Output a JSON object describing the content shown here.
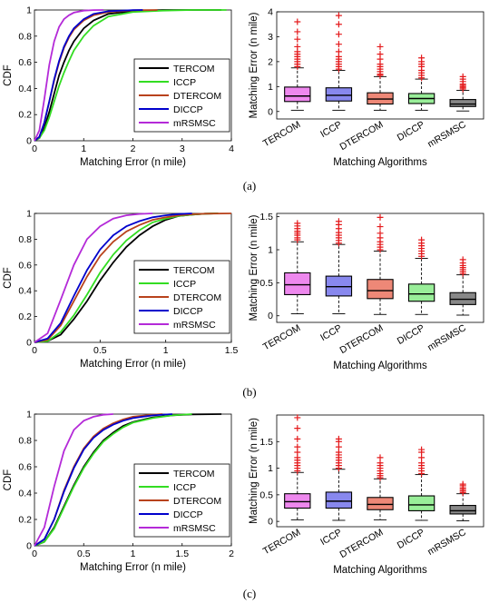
{
  "captions": [
    "(a)",
    "(b)",
    "(c)"
  ],
  "colors": {
    "TERCOM": "#000000",
    "ICCP": "#33dd22",
    "DTERCOM": "#b8421c",
    "DICCP": "#0000cc",
    "mRSMSC": "#b42ad8",
    "outlier": "#e41a1c",
    "box_fills": [
      "#ee88ee",
      "#8888ee",
      "#ee8877",
      "#99ee99",
      "#888888"
    ]
  },
  "chart_data": [
    {
      "type": "line",
      "panel": "a",
      "xlabel": "Matching Error (n mile)",
      "ylabel": "CDF",
      "xlim": [
        0,
        4
      ],
      "ylim": [
        0,
        1
      ],
      "xticks": [
        "0",
        "1",
        "2",
        "3",
        "4"
      ],
      "yticks": [
        "0",
        "0.2",
        "0.4",
        "0.6",
        "0.8",
        "1"
      ],
      "legend": "right",
      "series": [
        {
          "name": "TERCOM",
          "x": [
            0,
            0.1,
            0.2,
            0.3,
            0.4,
            0.5,
            0.6,
            0.7,
            0.8,
            1.0,
            1.2,
            1.5,
            2.0,
            2.6,
            3.2,
            3.8
          ],
          "y": [
            0,
            0.02,
            0.1,
            0.22,
            0.36,
            0.5,
            0.6,
            0.69,
            0.76,
            0.86,
            0.92,
            0.97,
            0.99,
            1,
            1,
            1
          ]
        },
        {
          "name": "ICCP",
          "x": [
            0,
            0.1,
            0.2,
            0.3,
            0.4,
            0.5,
            0.6,
            0.7,
            0.8,
            1.0,
            1.2,
            1.5,
            2.0,
            2.6,
            3.2,
            3.9
          ],
          "y": [
            0,
            0.02,
            0.08,
            0.18,
            0.3,
            0.42,
            0.52,
            0.61,
            0.69,
            0.8,
            0.88,
            0.95,
            0.985,
            0.995,
            1,
            1
          ]
        },
        {
          "name": "DTERCOM",
          "x": [
            0,
            0.1,
            0.2,
            0.3,
            0.4,
            0.5,
            0.6,
            0.7,
            0.8,
            1.0,
            1.2,
            1.5,
            2.0,
            2.5
          ],
          "y": [
            0,
            0.03,
            0.14,
            0.3,
            0.46,
            0.6,
            0.71,
            0.79,
            0.85,
            0.92,
            0.96,
            0.985,
            0.998,
            1
          ]
        },
        {
          "name": "DICCP",
          "x": [
            0,
            0.1,
            0.2,
            0.3,
            0.4,
            0.5,
            0.6,
            0.7,
            0.8,
            1.0,
            1.2,
            1.5,
            2.0,
            2.2
          ],
          "y": [
            0,
            0.03,
            0.14,
            0.3,
            0.47,
            0.61,
            0.72,
            0.8,
            0.86,
            0.93,
            0.97,
            0.99,
            0.999,
            1
          ]
        },
        {
          "name": "mRSMSC",
          "x": [
            0,
            0.1,
            0.2,
            0.3,
            0.4,
            0.5,
            0.6,
            0.7,
            0.8,
            1.0,
            1.2,
            1.4
          ],
          "y": [
            0,
            0.08,
            0.32,
            0.58,
            0.76,
            0.87,
            0.93,
            0.96,
            0.98,
            0.995,
            0.999,
            1
          ]
        }
      ]
    },
    {
      "type": "box",
      "panel": "a",
      "xlabel": "Matching Algorithms",
      "ylabel": "Matching Error (n mile)",
      "ylim": [
        -0.3,
        4
      ],
      "yticks": [
        "0",
        "1",
        "2",
        "3",
        "4"
      ],
      "categories": [
        "TERCOM",
        "ICCP",
        "DTERCOM",
        "DICCP",
        "mRSMSC"
      ],
      "boxes": [
        {
          "min": 0.05,
          "q1": 0.4,
          "median": 0.62,
          "q3": 0.98,
          "max": 1.75,
          "outliers": [
            1.8,
            1.9,
            2.0,
            2.1,
            2.2,
            2.3,
            2.4,
            2.6,
            2.9,
            3.2,
            3.6
          ]
        },
        {
          "min": 0.05,
          "q1": 0.42,
          "median": 0.65,
          "q3": 0.95,
          "max": 1.65,
          "outliers": [
            1.7,
            1.8,
            1.9,
            2.0,
            2.1,
            2.2,
            2.4,
            2.7,
            3.1,
            3.5,
            3.85
          ]
        },
        {
          "min": 0.05,
          "q1": 0.3,
          "median": 0.5,
          "q3": 0.75,
          "max": 1.4,
          "outliers": [
            1.45,
            1.5,
            1.6,
            1.7,
            1.8,
            1.9,
            2.1,
            2.3,
            2.6
          ]
        },
        {
          "min": 0.05,
          "q1": 0.32,
          "median": 0.52,
          "q3": 0.72,
          "max": 1.3,
          "outliers": [
            1.35,
            1.45,
            1.55,
            1.65,
            1.8,
            1.9,
            2.0,
            2.15
          ]
        },
        {
          "min": 0.02,
          "q1": 0.2,
          "median": 0.3,
          "q3": 0.48,
          "max": 0.85,
          "outliers": [
            0.9,
            0.95,
            1.0,
            1.05,
            1.1,
            1.2,
            1.3,
            1.4
          ]
        }
      ]
    },
    {
      "type": "line",
      "panel": "b",
      "xlabel": "Matching Error (n mile)",
      "ylabel": "CDF",
      "xlim": [
        0,
        1.5
      ],
      "ylim": [
        0,
        1
      ],
      "xticks": [
        "0",
        "0.5",
        "1",
        "1.5"
      ],
      "yticks": [
        "0",
        "0.2",
        "0.4",
        "0.6",
        "0.8",
        "1"
      ],
      "legend": "right",
      "series": [
        {
          "name": "TERCOM",
          "x": [
            0,
            0.1,
            0.2,
            0.3,
            0.4,
            0.5,
            0.6,
            0.7,
            0.8,
            0.9,
            1.0,
            1.1,
            1.2,
            1.3,
            1.4
          ],
          "y": [
            0,
            0.01,
            0.06,
            0.18,
            0.32,
            0.48,
            0.62,
            0.74,
            0.83,
            0.9,
            0.95,
            0.98,
            0.99,
            0.998,
            1
          ]
        },
        {
          "name": "ICCP",
          "x": [
            0,
            0.1,
            0.2,
            0.3,
            0.4,
            0.5,
            0.6,
            0.7,
            0.8,
            0.9,
            1.0,
            1.1,
            1.2,
            1.3,
            1.4
          ],
          "y": [
            0,
            0.01,
            0.08,
            0.21,
            0.37,
            0.54,
            0.68,
            0.79,
            0.87,
            0.93,
            0.96,
            0.98,
            0.99,
            0.998,
            1
          ]
        },
        {
          "name": "DTERCOM",
          "x": [
            0,
            0.1,
            0.2,
            0.3,
            0.4,
            0.5,
            0.6,
            0.7,
            0.8,
            0.9,
            1.0,
            1.1,
            1.2,
            1.3,
            1.5
          ],
          "y": [
            0,
            0.02,
            0.13,
            0.32,
            0.51,
            0.67,
            0.78,
            0.86,
            0.91,
            0.95,
            0.97,
            0.985,
            0.993,
            0.998,
            1
          ]
        },
        {
          "name": "DICCP",
          "x": [
            0,
            0.1,
            0.2,
            0.3,
            0.4,
            0.5,
            0.6,
            0.7,
            0.8,
            0.9,
            1.0,
            1.1,
            1.2
          ],
          "y": [
            0,
            0.03,
            0.15,
            0.36,
            0.56,
            0.72,
            0.83,
            0.9,
            0.94,
            0.97,
            0.985,
            0.995,
            1
          ]
        },
        {
          "name": "mRSMSC",
          "x": [
            0,
            0.1,
            0.2,
            0.3,
            0.4,
            0.5,
            0.6,
            0.7,
            0.8,
            0.9
          ],
          "y": [
            0,
            0.07,
            0.33,
            0.6,
            0.8,
            0.9,
            0.96,
            0.985,
            0.996,
            1
          ]
        }
      ]
    },
    {
      "type": "box",
      "panel": "b",
      "xlabel": "Matching Algorithms",
      "ylabel": "Matching Error (n mile)",
      "ylim": [
        -0.1,
        1.55
      ],
      "yticks": [
        "0",
        "0.5",
        "1",
        "1.5"
      ],
      "categories": [
        "TERCOM",
        "ICCP",
        "DTERCOM",
        "DICCP",
        "mRSMSC"
      ],
      "boxes": [
        {
          "min": 0.03,
          "q1": 0.32,
          "median": 0.47,
          "q3": 0.65,
          "max": 1.12,
          "outliers": [
            1.15,
            1.18,
            1.22,
            1.25,
            1.28,
            1.32,
            1.36,
            1.4
          ]
        },
        {
          "min": 0.03,
          "q1": 0.3,
          "median": 0.44,
          "q3": 0.6,
          "max": 1.08,
          "outliers": [
            1.1,
            1.14,
            1.18,
            1.22,
            1.26,
            1.32,
            1.38,
            1.43
          ]
        },
        {
          "min": 0.02,
          "q1": 0.26,
          "median": 0.38,
          "q3": 0.55,
          "max": 0.98,
          "outliers": [
            1.0,
            1.04,
            1.08,
            1.12,
            1.18,
            1.25,
            1.35,
            1.49
          ]
        },
        {
          "min": 0.02,
          "q1": 0.22,
          "median": 0.33,
          "q3": 0.48,
          "max": 0.87,
          "outliers": [
            0.9,
            0.94,
            0.98,
            1.02,
            1.06,
            1.1,
            1.15
          ]
        },
        {
          "min": 0.01,
          "q1": 0.17,
          "median": 0.25,
          "q3": 0.35,
          "max": 0.62,
          "outliers": [
            0.64,
            0.67,
            0.7,
            0.73,
            0.76,
            0.8,
            0.85
          ]
        }
      ]
    },
    {
      "type": "line",
      "panel": "c",
      "xlabel": "Matching Error (n mile)",
      "ylabel": "CDF",
      "xlim": [
        0,
        2
      ],
      "ylim": [
        0,
        1
      ],
      "xticks": [
        "0",
        "0.5",
        "1",
        "1.5",
        "2"
      ],
      "yticks": [
        "0",
        "0.2",
        "0.4",
        "0.6",
        "0.8",
        "1"
      ],
      "legend": "right",
      "series": [
        {
          "name": "TERCOM",
          "x": [
            0,
            0.1,
            0.2,
            0.3,
            0.4,
            0.5,
            0.6,
            0.7,
            0.8,
            0.9,
            1.0,
            1.2,
            1.4,
            1.6,
            1.9
          ],
          "y": [
            0,
            0.03,
            0.14,
            0.3,
            0.46,
            0.6,
            0.71,
            0.8,
            0.86,
            0.91,
            0.94,
            0.975,
            0.99,
            0.998,
            1
          ]
        },
        {
          "name": "ICCP",
          "x": [
            0,
            0.1,
            0.2,
            0.3,
            0.4,
            0.5,
            0.6,
            0.7,
            0.8,
            0.9,
            1.0,
            1.2,
            1.4,
            1.6
          ],
          "y": [
            0,
            0.03,
            0.13,
            0.29,
            0.45,
            0.59,
            0.7,
            0.79,
            0.85,
            0.9,
            0.935,
            0.97,
            0.99,
            1
          ]
        },
        {
          "name": "DTERCOM",
          "x": [
            0,
            0.1,
            0.2,
            0.3,
            0.4,
            0.5,
            0.6,
            0.7,
            0.8,
            0.9,
            1.0,
            1.2,
            1.3
          ],
          "y": [
            0,
            0.05,
            0.2,
            0.42,
            0.6,
            0.74,
            0.83,
            0.89,
            0.93,
            0.96,
            0.98,
            0.995,
            1
          ]
        },
        {
          "name": "DICCP",
          "x": [
            0,
            0.1,
            0.2,
            0.3,
            0.4,
            0.5,
            0.6,
            0.7,
            0.8,
            0.9,
            1.0,
            1.2,
            1.4
          ],
          "y": [
            0,
            0.05,
            0.2,
            0.41,
            0.59,
            0.73,
            0.82,
            0.88,
            0.92,
            0.95,
            0.97,
            0.99,
            1
          ]
        },
        {
          "name": "mRSMSC",
          "x": [
            0,
            0.1,
            0.2,
            0.3,
            0.4,
            0.5,
            0.6,
            0.7,
            0.8
          ],
          "y": [
            0,
            0.14,
            0.45,
            0.72,
            0.88,
            0.95,
            0.98,
            0.995,
            1
          ]
        }
      ]
    },
    {
      "type": "box",
      "panel": "c",
      "xlabel": "Matching Algorithms",
      "ylabel": "Matching Error (n mile)",
      "ylim": [
        -0.1,
        2.0
      ],
      "yticks": [
        "0",
        "0.5",
        "1",
        "1.5"
      ],
      "categories": [
        "TERCOM",
        "ICCP",
        "DTERCOM",
        "DICCP",
        "mRSMSC"
      ],
      "boxes": [
        {
          "min": 0.03,
          "q1": 0.25,
          "median": 0.37,
          "q3": 0.52,
          "max": 0.92,
          "outliers": [
            0.95,
            1.0,
            1.05,
            1.1,
            1.15,
            1.2,
            1.3,
            1.4,
            1.55,
            1.75,
            1.95
          ]
        },
        {
          "min": 0.02,
          "q1": 0.25,
          "median": 0.38,
          "q3": 0.55,
          "max": 0.98,
          "outliers": [
            1.0,
            1.05,
            1.1,
            1.15,
            1.2,
            1.25,
            1.3,
            1.4,
            1.5,
            1.55
          ]
        },
        {
          "min": 0.03,
          "q1": 0.22,
          "median": 0.32,
          "q3": 0.45,
          "max": 0.8,
          "outliers": [
            0.82,
            0.86,
            0.9,
            0.95,
            1.0,
            1.05,
            1.1,
            1.2
          ]
        },
        {
          "min": 0.02,
          "q1": 0.2,
          "median": 0.31,
          "q3": 0.48,
          "max": 0.88,
          "outliers": [
            0.9,
            0.95,
            1.0,
            1.05,
            1.1,
            1.2,
            1.3,
            1.35
          ]
        },
        {
          "min": 0.01,
          "q1": 0.14,
          "median": 0.2,
          "q3": 0.3,
          "max": 0.52,
          "outliers": [
            0.54,
            0.57,
            0.6,
            0.63,
            0.67,
            0.7
          ]
        }
      ]
    }
  ]
}
